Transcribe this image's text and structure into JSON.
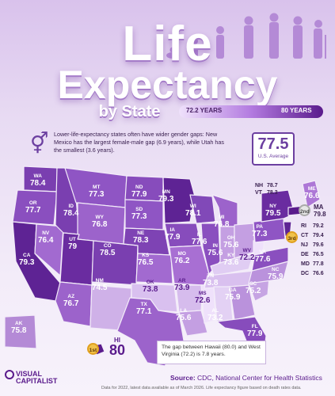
{
  "title": {
    "line1": "Life",
    "line2": "Expectancy",
    "line3": "by State"
  },
  "legend": {
    "min_label": "72.2 YEARS",
    "max_label": "80 YEARS"
  },
  "note": "Lower-life-expectancy states often have wider gender gaps: New Mexico has the largest female-male gap (6.9 years), while Utah has the smallest (3.6 years).",
  "us_average": {
    "value": "77.5",
    "label": "U.S. Average"
  },
  "colors": {
    "lowest": "#efe1fb",
    "mid": "#b37be0",
    "highest": "#5a1b8c",
    "accent": "#6c3fa0"
  },
  "map_data": [
    {
      "abbr": "WA",
      "value": "78.4"
    },
    {
      "abbr": "OR",
      "value": "77.7"
    },
    {
      "abbr": "CA",
      "value": "79.3"
    },
    {
      "abbr": "NV",
      "value": "76.4"
    },
    {
      "abbr": "ID",
      "value": "78.4"
    },
    {
      "abbr": "MT",
      "value": "77.3"
    },
    {
      "abbr": "WY",
      "value": "76.8"
    },
    {
      "abbr": "UT",
      "value": "79"
    },
    {
      "abbr": "AZ",
      "value": "76.7"
    },
    {
      "abbr": "CO",
      "value": "78.5"
    },
    {
      "abbr": "NM",
      "value": "74.5"
    },
    {
      "abbr": "ND",
      "value": "77.9"
    },
    {
      "abbr": "SD",
      "value": "77.3"
    },
    {
      "abbr": "NE",
      "value": "78.3"
    },
    {
      "abbr": "KS",
      "value": "76.5"
    },
    {
      "abbr": "OK",
      "value": "73.8"
    },
    {
      "abbr": "TX",
      "value": "77.1"
    },
    {
      "abbr": "MN",
      "value": "79.3"
    },
    {
      "abbr": "IA",
      "value": "77.9"
    },
    {
      "abbr": "MO",
      "value": "76.2"
    },
    {
      "abbr": "AR",
      "value": "73.9"
    },
    {
      "abbr": "LA",
      "value": "75.6"
    },
    {
      "abbr": "WI",
      "value": "78.1"
    },
    {
      "abbr": "IL",
      "value": "77.6"
    },
    {
      "abbr": "MS",
      "value": "72.6"
    },
    {
      "abbr": "MI",
      "value": "76.8"
    },
    {
      "abbr": "IN",
      "value": "75.6"
    },
    {
      "abbr": "OH",
      "value": "75.6"
    },
    {
      "abbr": "KY",
      "value": "73.6"
    },
    {
      "abbr": "TN",
      "value": "73.8"
    },
    {
      "abbr": "AL",
      "value": "73.2"
    },
    {
      "abbr": "GA",
      "value": "75.9"
    },
    {
      "abbr": "FL",
      "value": "77.9"
    },
    {
      "abbr": "SC",
      "value": "75.2"
    },
    {
      "abbr": "NC",
      "value": "75.9"
    },
    {
      "abbr": "VA",
      "value": "77.6"
    },
    {
      "abbr": "WV",
      "value": "72.2"
    },
    {
      "abbr": "PA",
      "value": "77.3"
    },
    {
      "abbr": "NY",
      "value": "79.5"
    },
    {
      "abbr": "ME",
      "value": "76.6"
    },
    {
      "abbr": "NH",
      "value": "78.7"
    },
    {
      "abbr": "VT",
      "value": "78.3"
    },
    {
      "abbr": "MA",
      "value": "79.8"
    },
    {
      "abbr": "RI",
      "value": "79.2"
    },
    {
      "abbr": "CT",
      "value": "79.4"
    },
    {
      "abbr": "NJ",
      "value": "79.6"
    },
    {
      "abbr": "DE",
      "value": "76.5"
    },
    {
      "abbr": "MD",
      "value": "77.8"
    },
    {
      "abbr": "DC",
      "value": "76.6"
    },
    {
      "abbr": "AK",
      "value": "75.8"
    },
    {
      "abbr": "HI",
      "value": "80"
    }
  ],
  "ranks": {
    "first": "1st",
    "second": "2nd",
    "third": "3rd"
  },
  "callout": "The gap between Hawaii (80.0) and West Virginia (72.2) is 7.8 years.",
  "logo": {
    "line1": "VISUAL",
    "line2": "CAPITALIST"
  },
  "source": {
    "label": "Source:",
    "text": "CDC, National Center for Health Statistics"
  },
  "footnote": "Data for 2022, latest data available as of March 2026. Life expectancy figure based on death rates data."
}
